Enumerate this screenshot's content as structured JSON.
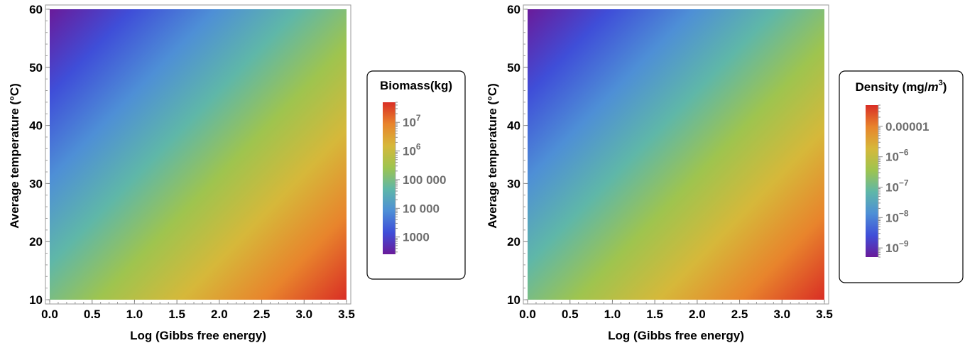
{
  "chart_data": [
    {
      "type": "heatmap",
      "title": "",
      "xlabel": "Log (Gibbs free energy)",
      "ylabel": "Average temperature (°C)",
      "xlim": [
        0,
        3.5
      ],
      "ylim": [
        10,
        60
      ],
      "x_ticks": [
        "0.0",
        "0.5",
        "1.0",
        "1.5",
        "2.0",
        "2.5",
        "3.0",
        "3.5"
      ],
      "y_ticks": [
        "10",
        "20",
        "30",
        "40",
        "50",
        "60"
      ],
      "colorscale": "rainbow",
      "colors": [
        "#6a1b9a",
        "#3f4ed8",
        "#4e8fd6",
        "#5fb7a8",
        "#9ec44f",
        "#d6b83a",
        "#e8842c",
        "#d92e25"
      ],
      "legend": {
        "title": "Biomass(kg)",
        "placement": "right",
        "scale": "log",
        "range": [
          250,
          50000000
        ],
        "ticks": [
          {
            "value": 10000000,
            "base": "10",
            "exp": "7",
            "label": ""
          },
          {
            "value": 1000000,
            "base": "10",
            "exp": "6",
            "label": ""
          },
          {
            "value": 100000,
            "base": "",
            "exp": "",
            "label": "100 000"
          },
          {
            "value": 10000,
            "base": "",
            "exp": "",
            "label": "10 000"
          },
          {
            "value": 1000,
            "base": "",
            "exp": "",
            "label": "1000"
          }
        ]
      }
    },
    {
      "type": "heatmap",
      "title": "",
      "xlabel": "Log (Gibbs free energy)",
      "ylabel": "Average temperature (°C)",
      "xlim": [
        0,
        3.5
      ],
      "ylim": [
        10,
        60
      ],
      "x_ticks": [
        "0.0",
        "0.5",
        "1.0",
        "1.5",
        "2.0",
        "2.5",
        "3.0",
        "3.5"
      ],
      "y_ticks": [
        "10",
        "20",
        "30",
        "40",
        "50",
        "60"
      ],
      "colorscale": "rainbow",
      "colors": [
        "#6a1b9a",
        "#3f4ed8",
        "#4e8fd6",
        "#5fb7a8",
        "#9ec44f",
        "#d6b83a",
        "#e8842c",
        "#d92e25"
      ],
      "legend": {
        "title_main": "Density (mg/",
        "title_unit": "m",
        "title_exp": "3",
        "title_end": ")",
        "placement": "right",
        "scale": "log",
        "range": [
          5e-10,
          5e-05
        ],
        "ticks": [
          {
            "value": 1e-05,
            "base": "",
            "exp": "",
            "label": "0.00001"
          },
          {
            "value": 1e-06,
            "base": "10",
            "exp": "−6",
            "label": ""
          },
          {
            "value": 1e-07,
            "base": "10",
            "exp": "−7",
            "label": ""
          },
          {
            "value": 1e-08,
            "base": "10",
            "exp": "−8",
            "label": ""
          },
          {
            "value": 1e-09,
            "base": "10",
            "exp": "−9",
            "label": ""
          }
        ]
      }
    }
  ]
}
